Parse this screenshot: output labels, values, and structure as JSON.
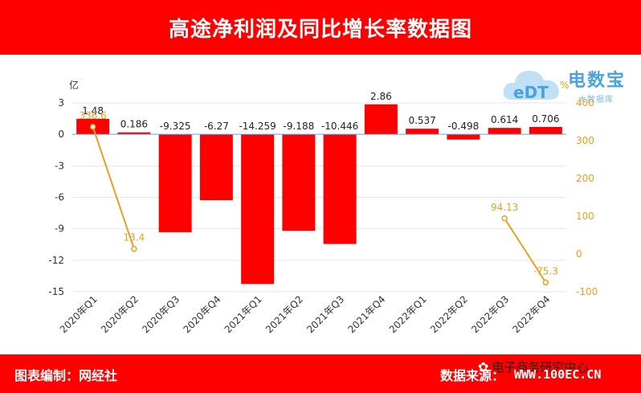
{
  "header": {
    "title": "高途净利润及同比增长率数据图"
  },
  "footer": {
    "left": "图表编制：网经社",
    "right": "数据来源：",
    "watermark_text": "电子商务研究中心",
    "watermark_url": "WWW.100EC.CN"
  },
  "logo": {
    "main": "电数宝",
    "sub": "大数据库",
    "mark": "eDT"
  },
  "chart_data": {
    "type": "bar+line",
    "categories": [
      "2020年Q1",
      "2020年Q2",
      "2020年Q3",
      "2020年Q4",
      "2021年Q1",
      "2021年Q2",
      "2021年Q3",
      "2021年Q4",
      "2022年Q1",
      "2022年Q2",
      "2022年Q3",
      "2022年Q4"
    ],
    "bar_series": {
      "values": [
        1.48,
        0.186,
        -9.325,
        -6.27,
        -14.259,
        -9.188,
        -10.446,
        2.86,
        0.537,
        -0.498,
        0.614,
        0.706
      ],
      "labels": [
        "1.48",
        "0.186",
        "-9.325",
        "-6.27",
        "-14.259",
        "-9.188",
        "-10.446",
        "2.86",
        "0.537",
        "-0.498",
        "0.614",
        "0.706"
      ],
      "color": "#ff0000"
    },
    "line_series": {
      "segments": [
        {
          "indices": [
            0,
            1
          ],
          "values": [
            336.6,
            13.4
          ],
          "labels": [
            "336.6",
            "13.4"
          ]
        },
        {
          "indices": [
            10,
            11
          ],
          "values": [
            94.13,
            -75.3
          ],
          "labels": [
            "94.13",
            "-75.3"
          ]
        }
      ],
      "color": "#e8a020"
    },
    "left_axis": {
      "unit": "亿",
      "min": -15,
      "max": 3,
      "ticks": [
        3,
        0,
        -3,
        -6,
        -9,
        -12,
        -15
      ]
    },
    "right_axis": {
      "unit": "%",
      "min": -100,
      "max": 400,
      "ticks": [
        400,
        300,
        200,
        100,
        0,
        -100
      ]
    },
    "grid": true
  }
}
